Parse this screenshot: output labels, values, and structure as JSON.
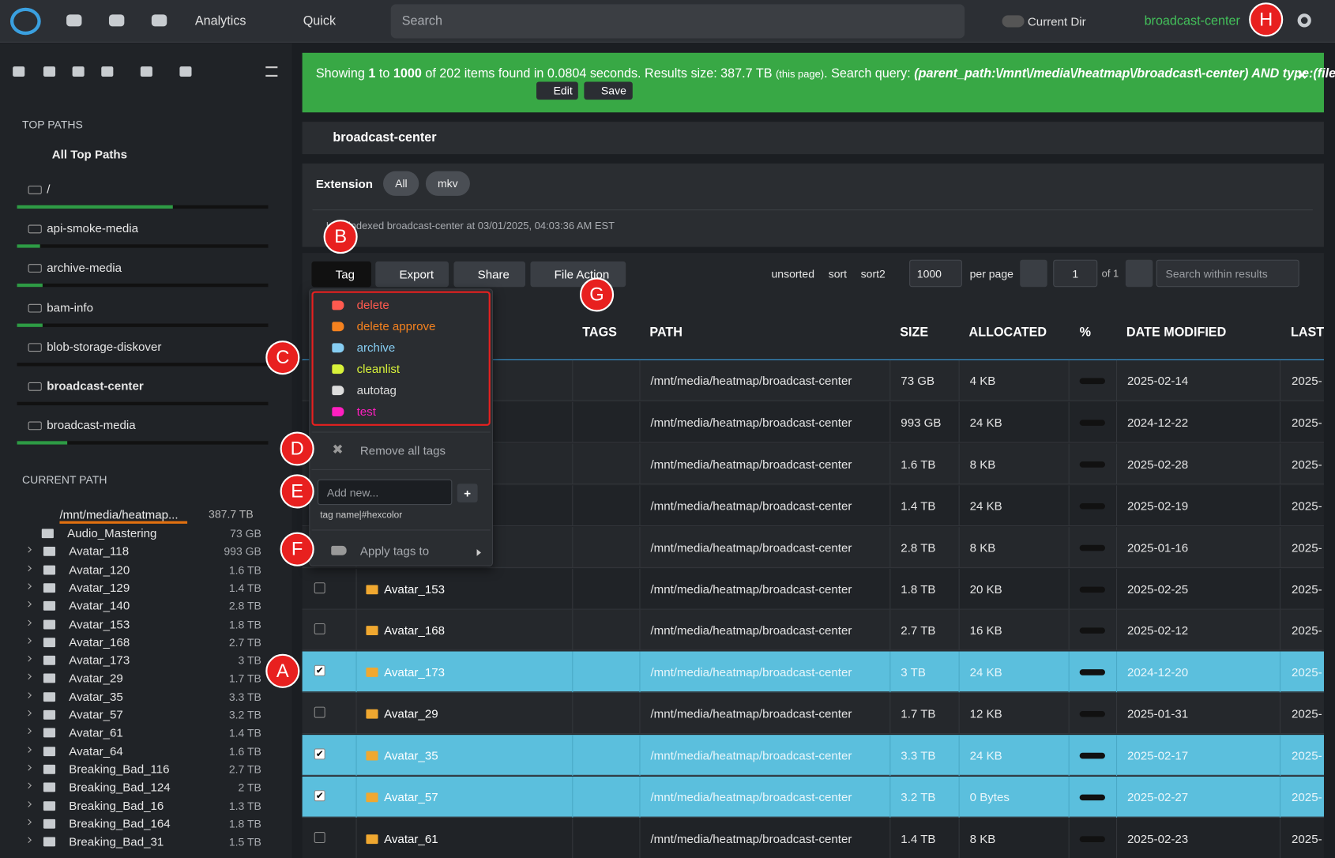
{
  "navbar": {
    "menus": [
      "Analytics",
      "Quick"
    ],
    "search_placeholder": "Search",
    "current_dir": "Current Dir",
    "index_name": "broadcast-center"
  },
  "sidebar": {
    "top_paths_title": "TOP PATHS",
    "all_top_paths": "All Top Paths",
    "top_paths": [
      {
        "name": "/",
        "usage": 0.62
      },
      {
        "name": "api-smoke-media",
        "usage": 0.09
      },
      {
        "name": "archive-media",
        "usage": 0.1
      },
      {
        "name": "bam-info",
        "usage": 0.1
      },
      {
        "name": "blob-storage-diskover",
        "usage": 0.0
      },
      {
        "name": "broadcast-center",
        "usage": 0.0
      },
      {
        "name": "broadcast-media",
        "usage": 0.2
      }
    ],
    "current_path_title": "CURRENT PATH",
    "root": {
      "name": "/mnt/media/heatmap...",
      "size": "387.7 TB"
    },
    "children": [
      {
        "name": "Audio_Mastering",
        "size": "73 GB"
      },
      {
        "name": "Avatar_118",
        "size": "993 GB"
      },
      {
        "name": "Avatar_120",
        "size": "1.6 TB"
      },
      {
        "name": "Avatar_129",
        "size": "1.4 TB"
      },
      {
        "name": "Avatar_140",
        "size": "2.8 TB"
      },
      {
        "name": "Avatar_153",
        "size": "1.8 TB"
      },
      {
        "name": "Avatar_168",
        "size": "2.7 TB"
      },
      {
        "name": "Avatar_173",
        "size": "3 TB"
      },
      {
        "name": "Avatar_29",
        "size": "1.7 TB"
      },
      {
        "name": "Avatar_35",
        "size": "3.3 TB"
      },
      {
        "name": "Avatar_57",
        "size": "3.2 TB"
      },
      {
        "name": "Avatar_61",
        "size": "1.4 TB"
      },
      {
        "name": "Avatar_64",
        "size": "1.6 TB"
      },
      {
        "name": "Breaking_Bad_116",
        "size": "2.7 TB"
      },
      {
        "name": "Breaking_Bad_124",
        "size": "2 TB"
      },
      {
        "name": "Breaking_Bad_16",
        "size": "1.3 TB"
      },
      {
        "name": "Breaking_Bad_164",
        "size": "1.8 TB"
      },
      {
        "name": "Breaking_Bad_31",
        "size": "1.5 TB"
      }
    ]
  },
  "banner": {
    "segments": [
      {
        "text": "Showing ",
        "style": "normal"
      },
      {
        "text": "1",
        "style": "bold"
      },
      {
        "text": " to ",
        "style": "normal"
      },
      {
        "text": "1000",
        "style": "bold"
      },
      {
        "text": " of 202 items found in 0.0804 seconds. Results size: 387.7 TB ",
        "style": "normal"
      },
      {
        "text": "(this page)",
        "style": "small"
      },
      {
        "text": ". Search query: ",
        "style": "normal"
      },
      {
        "text": "(parent_path:\\/mnt\\/media\\/heatmap\\/broadcast\\-center) AND type:(file OR directory)",
        "style": "bolditalic"
      }
    ],
    "edit": "Edit",
    "save": "Save"
  },
  "header": {
    "title": "broadcast-center"
  },
  "filter": {
    "label": "Extension",
    "options": [
      "All",
      "mkv"
    ],
    "indexed": "Last indexed broadcast-center at 03/01/2025, 04:03:36 AM EST"
  },
  "toolbar": {
    "buttons": [
      "Tag",
      "Export",
      "Share",
      "File Action"
    ],
    "sort": [
      "unsorted",
      "sort",
      "sort2"
    ],
    "per_page_value": "1000",
    "per_page": "per page",
    "page": "1",
    "of": "of 1",
    "search_placeholder": "Search within results"
  },
  "tag_menu": {
    "tags": [
      {
        "name": "delete",
        "color": "#ff5a4f"
      },
      {
        "name": "delete approve",
        "color": "#f5821f"
      },
      {
        "name": "archive",
        "color": "#86cdf2"
      },
      {
        "name": "cleanlist",
        "color": "#d8f23a"
      },
      {
        "name": "autotag",
        "color": "#dddddd"
      },
      {
        "name": "test",
        "color": "#ff1fbf"
      }
    ],
    "remove_all": "Remove all tags",
    "add_placeholder": "Add new...",
    "hint": "tag name|#hexcolor",
    "apply": "Apply tags to"
  },
  "table": {
    "columns": [
      "TAGS",
      "PATH",
      "SIZE",
      "ALLOCATED",
      "%",
      "DATE MODIFIED",
      "LAST"
    ],
    "rows": [
      {
        "name": null,
        "checked": false,
        "path": "/mnt/media/heatmap/broadcast-center",
        "size": "73 GB",
        "allocated": "4 KB",
        "modified": "2025-02-14",
        "last": "2025-"
      },
      {
        "name": null,
        "checked": false,
        "path": "/mnt/media/heatmap/broadcast-center",
        "size": "993 GB",
        "allocated": "24 KB",
        "modified": "2024-12-22",
        "last": "2025-"
      },
      {
        "name": null,
        "checked": false,
        "path": "/mnt/media/heatmap/broadcast-center",
        "size": "1.6 TB",
        "allocated": "8 KB",
        "modified": "2025-02-28",
        "last": "2025-"
      },
      {
        "name": null,
        "checked": false,
        "path": "/mnt/media/heatmap/broadcast-center",
        "size": "1.4 TB",
        "allocated": "24 KB",
        "modified": "2025-02-19",
        "last": "2025-"
      },
      {
        "name": null,
        "checked": false,
        "path": "/mnt/media/heatmap/broadcast-center",
        "size": "2.8 TB",
        "allocated": "8 KB",
        "modified": "2025-01-16",
        "last": "2025-"
      },
      {
        "name": "Avatar_153",
        "checked": false,
        "path": "/mnt/media/heatmap/broadcast-center",
        "size": "1.8 TB",
        "allocated": "20 KB",
        "modified": "2025-02-25",
        "last": "2025-"
      },
      {
        "name": "Avatar_168",
        "checked": false,
        "path": "/mnt/media/heatmap/broadcast-center",
        "size": "2.7 TB",
        "allocated": "16 KB",
        "modified": "2025-02-12",
        "last": "2025-"
      },
      {
        "name": "Avatar_173",
        "checked": true,
        "path": "/mnt/media/heatmap/broadcast-center",
        "size": "3 TB",
        "allocated": "24 KB",
        "modified": "2024-12-20",
        "last": "2025-"
      },
      {
        "name": "Avatar_29",
        "checked": false,
        "path": "/mnt/media/heatmap/broadcast-center",
        "size": "1.7 TB",
        "allocated": "12 KB",
        "modified": "2025-01-31",
        "last": "2025-"
      },
      {
        "name": "Avatar_35",
        "checked": true,
        "path": "/mnt/media/heatmap/broadcast-center",
        "size": "3.3 TB",
        "allocated": "24 KB",
        "modified": "2025-02-17",
        "last": "2025-"
      },
      {
        "name": "Avatar_57",
        "checked": true,
        "path": "/mnt/media/heatmap/broadcast-center",
        "size": "3.2 TB",
        "allocated": "0 Bytes",
        "modified": "2025-02-27",
        "last": "2025-"
      },
      {
        "name": "Avatar_61",
        "checked": false,
        "path": "/mnt/media/heatmap/broadcast-center",
        "size": "1.4 TB",
        "allocated": "8 KB",
        "modified": "2025-02-23",
        "last": "2025-"
      }
    ]
  },
  "callouts": [
    "A",
    "B",
    "C",
    "D",
    "E",
    "F",
    "G",
    "H"
  ]
}
